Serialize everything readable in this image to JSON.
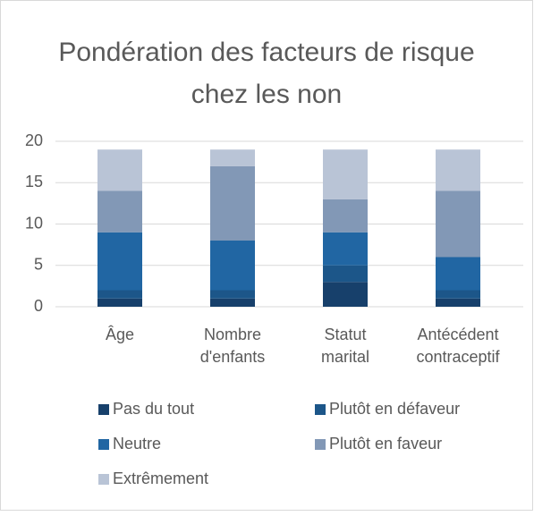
{
  "chart_data": {
    "type": "stacked-bar",
    "title": "Pondération des facteurs de risque chez les non",
    "categories": [
      "Âge",
      "Nombre d'enfants",
      "Statut marital",
      "Antécédent contraceptif"
    ],
    "series": [
      {
        "name": "Pas du tout",
        "color": "#17406b",
        "values": [
          1,
          1,
          3,
          1
        ]
      },
      {
        "name": "Plutôt en défaveur",
        "color": "#1c5689",
        "values": [
          1,
          1,
          2,
          1
        ]
      },
      {
        "name": "Neutre",
        "color": "#2166a3",
        "values": [
          7,
          6,
          4,
          4
        ]
      },
      {
        "name": "Plutôt en faveur",
        "color": "#8298b6",
        "values": [
          5,
          9,
          4,
          8
        ]
      },
      {
        "name": "Extrêmement",
        "color": "#b9c4d6",
        "values": [
          5,
          2,
          6,
          5
        ]
      }
    ],
    "ylim": [
      0,
      20
    ],
    "yticks": [
      0,
      5,
      10,
      15,
      20
    ],
    "grid": true
  }
}
